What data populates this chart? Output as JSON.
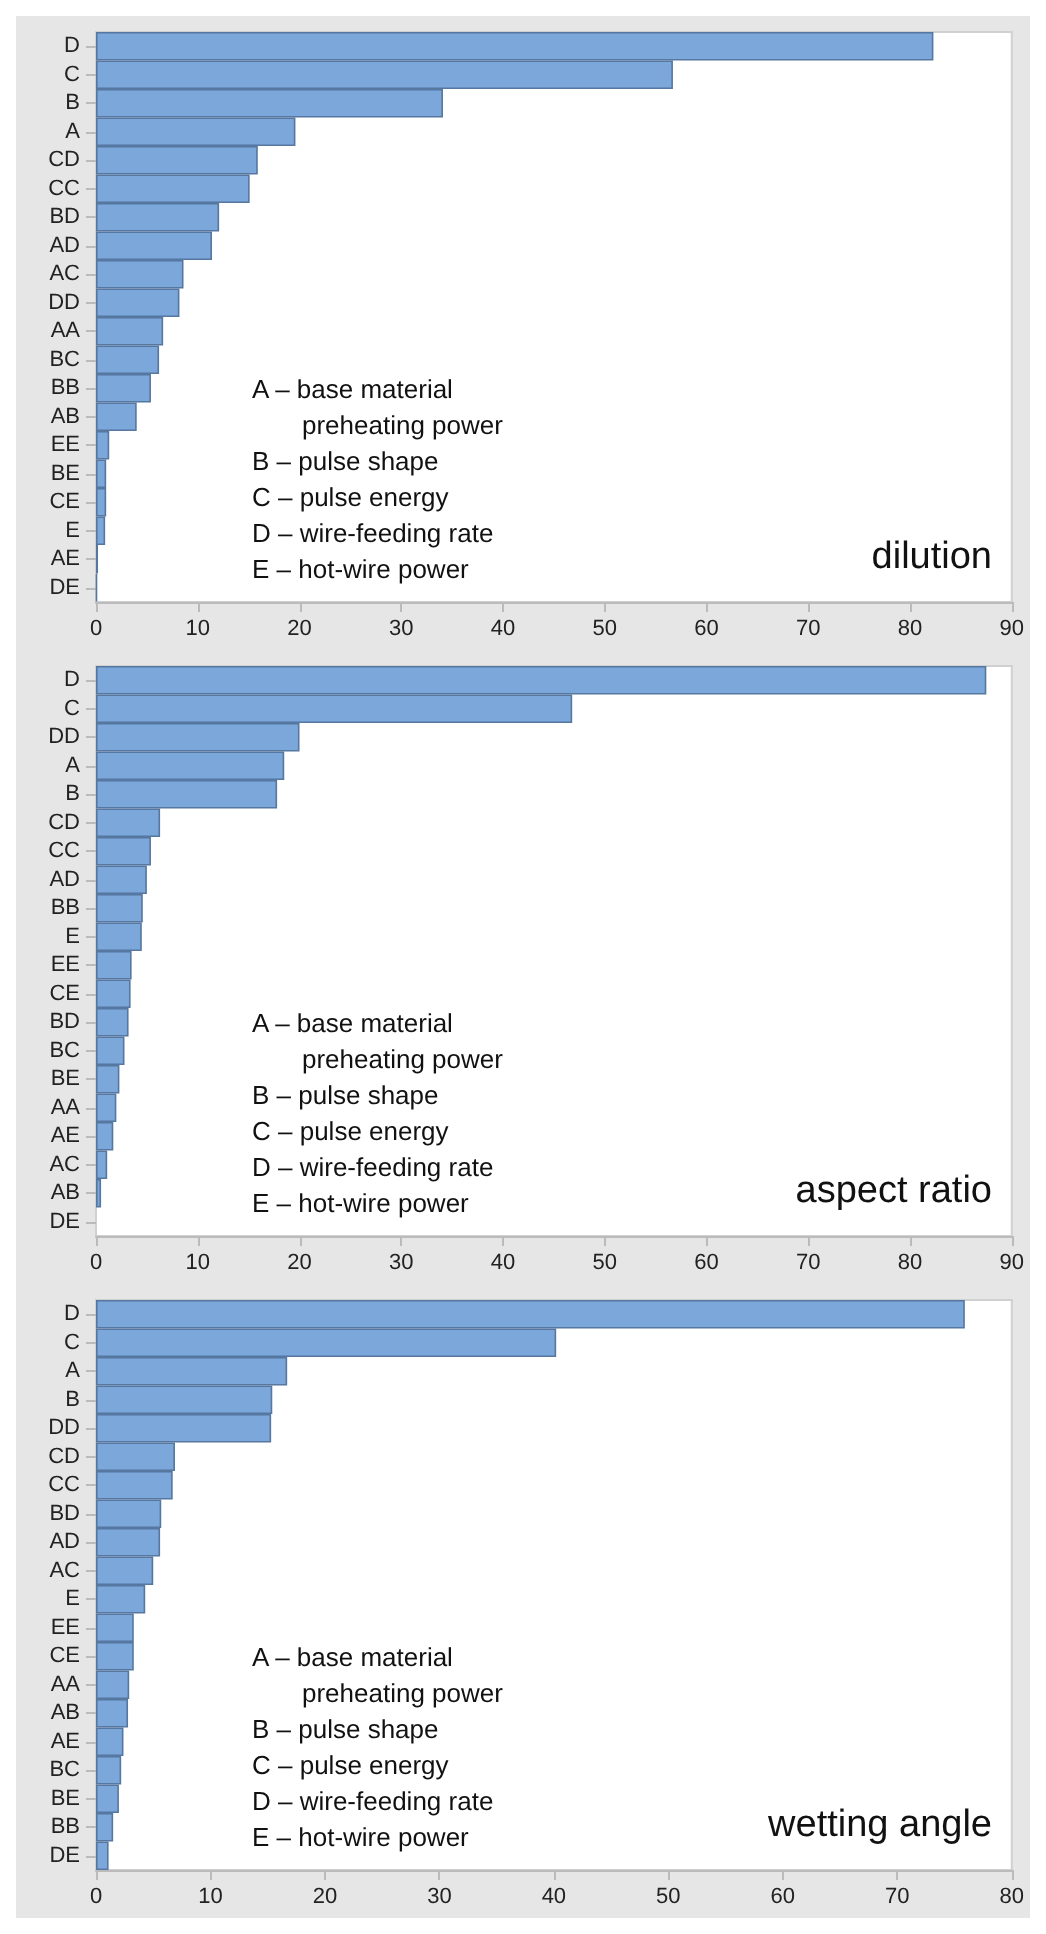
{
  "chart_data": [
    {
      "type": "bar",
      "orientation": "horizontal",
      "title": "dilution",
      "color": "#7ba7da",
      "xlim": [
        0,
        90
      ],
      "xticks": [
        0,
        10,
        20,
        30,
        40,
        50,
        60,
        70,
        80,
        90
      ],
      "categories": [
        "D",
        "C",
        "B",
        "A",
        "CD",
        "CC",
        "BD",
        "AD",
        "AC",
        "DD",
        "AA",
        "BC",
        "BB",
        "AB",
        "EE",
        "BE",
        "CE",
        "E",
        "AE",
        "DE"
      ],
      "values": [
        82.3,
        56.7,
        34.1,
        19.6,
        15.9,
        15.1,
        12.1,
        11.4,
        8.6,
        8.2,
        6.6,
        6.2,
        5.4,
        4.0,
        1.3,
        1.0,
        1.0,
        0.9,
        0.2,
        0.1
      ],
      "annotations": [
        "A – base material\npreheating power",
        "B – pulse shape",
        "C – pulse energy",
        "D – wire-feeding rate",
        "E – hot-wire power"
      ]
    },
    {
      "type": "bar",
      "orientation": "horizontal",
      "title": "aspect ratio",
      "color": "#7ba7da",
      "xlim": [
        0,
        90
      ],
      "xticks": [
        0,
        10,
        20,
        30,
        40,
        50,
        60,
        70,
        80,
        90
      ],
      "categories": [
        "D",
        "C",
        "DD",
        "A",
        "B",
        "CD",
        "CC",
        "AD",
        "BB",
        "E",
        "EE",
        "CE",
        "BD",
        "BC",
        "BE",
        "AA",
        "AE",
        "AC",
        "AB",
        "DE"
      ],
      "values": [
        87.5,
        46.8,
        20.0,
        18.5,
        17.8,
        6.3,
        5.4,
        5.0,
        4.6,
        4.5,
        3.5,
        3.4,
        3.2,
        2.8,
        2.3,
        2.0,
        1.7,
        1.1,
        0.5,
        0
      ],
      "annotations": [
        "A – base material\npreheating power",
        "B – pulse shape",
        "C – pulse energy",
        "D – wire-feeding rate",
        "E – hot-wire power"
      ]
    },
    {
      "type": "bar",
      "orientation": "horizontal",
      "title": "wetting angle",
      "color": "#7ba7da",
      "xlim": [
        0,
        80
      ],
      "xticks": [
        0,
        10,
        20,
        30,
        40,
        50,
        60,
        70,
        80
      ],
      "categories": [
        "D",
        "C",
        "A",
        "B",
        "DD",
        "CD",
        "CC",
        "BD",
        "AD",
        "AC",
        "E",
        "EE",
        "CE",
        "AA",
        "AB",
        "AE",
        "BC",
        "BE",
        "BB",
        "DE"
      ],
      "values": [
        75.9,
        40.2,
        16.7,
        15.4,
        15.3,
        6.9,
        6.7,
        5.7,
        5.6,
        5.0,
        4.3,
        3.3,
        3.3,
        2.9,
        2.8,
        2.4,
        2.2,
        2.0,
        1.5,
        1.1
      ],
      "annotations": [
        "A – base material\npreheating power",
        "B – pulse shape",
        "C – pulse energy",
        "D – wire-feeding rate",
        "E – hot-wire power"
      ]
    }
  ]
}
